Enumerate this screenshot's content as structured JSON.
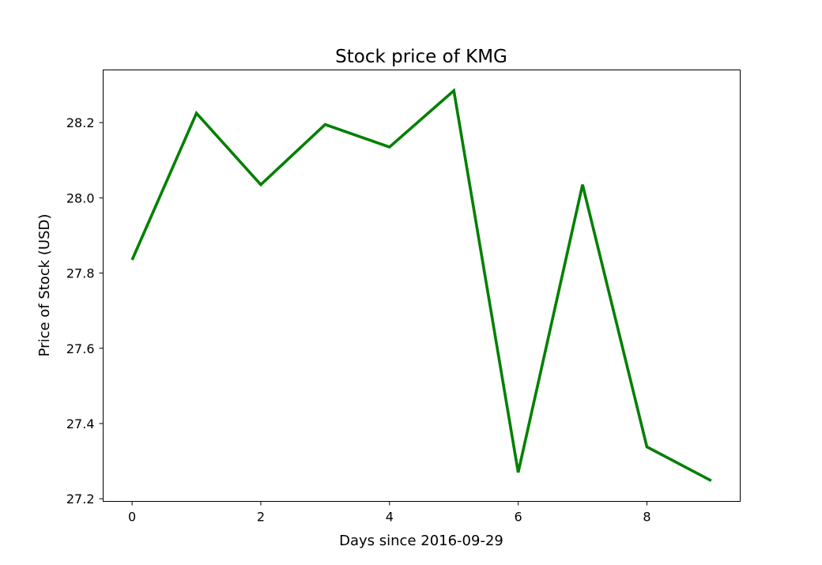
{
  "chart_data": {
    "type": "line",
    "title": "Stock price of KMG",
    "xlabel": "Days since 2016-09-29",
    "ylabel": "Price of Stock (USD)",
    "x": [
      0,
      1,
      2,
      3,
      4,
      5,
      6,
      7,
      8,
      9
    ],
    "series": [
      {
        "values": [
          27.835,
          28.225,
          28.035,
          28.195,
          28.135,
          28.285,
          27.27,
          28.035,
          27.338,
          27.248
        ],
        "color": "#008000"
      }
    ],
    "xlim": [
      -0.45,
      9.45
    ],
    "ylim": [
      27.193,
      28.34
    ],
    "xticks": [
      0,
      2,
      4,
      6,
      8
    ],
    "xtick_labels": [
      "0",
      "2",
      "4",
      "6",
      "8"
    ],
    "yticks": [
      27.2,
      27.4,
      27.6,
      27.8,
      28.0,
      28.2
    ],
    "ytick_labels": [
      "27.2",
      "27.4",
      "27.6",
      "27.8",
      "28.0",
      "28.2"
    ],
    "grid": false,
    "legend": "none"
  }
}
